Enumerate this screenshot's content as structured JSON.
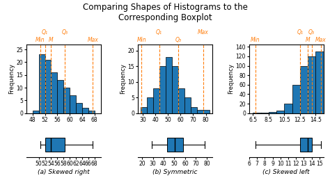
{
  "title": "Comparing Shapes of Histograms to the\nCorresponding Boxplot",
  "chart_data": [
    {
      "type": "histogram",
      "bins": [
        48,
        50,
        52,
        54,
        56,
        58,
        60,
        62,
        64,
        66,
        68
      ],
      "counts": [
        1,
        23,
        21,
        16,
        13,
        10,
        7,
        4,
        2,
        1
      ],
      "xlim": [
        46,
        70
      ],
      "ylim": [
        0,
        27
      ],
      "yticks": [
        0,
        5,
        10,
        15,
        20,
        25
      ],
      "xticks": [
        48,
        52,
        56,
        60,
        64,
        68
      ],
      "ylabel": "Frequency",
      "annotations": [
        {
          "x": 50.5,
          "text": "Min"
        },
        {
          "x": 52.0,
          "text": "Q₁"
        },
        {
          "x": 54.0,
          "text": "M"
        },
        {
          "x": 58.5,
          "text": "Q₃"
        },
        {
          "x": 67.5,
          "text": "Max"
        }
      ]
    },
    {
      "type": "boxplot",
      "min": 50.5,
      "q1": 52.0,
      "median": 54.0,
      "q3": 58.5,
      "max": 67.5,
      "xlim": [
        46,
        70
      ],
      "xticks": [
        50,
        52,
        54,
        56,
        58,
        60,
        62,
        64,
        66,
        68
      ],
      "xlabel": "(a) Skewed right"
    },
    {
      "type": "histogram",
      "bins": [
        28,
        33,
        38,
        43,
        48,
        53,
        58,
        63,
        68,
        73,
        78,
        83
      ],
      "counts": [
        2,
        5,
        8,
        15,
        18,
        15,
        8,
        5,
        2,
        1,
        1
      ],
      "xlim": [
        26,
        85
      ],
      "ylim": [
        0,
        22
      ],
      "yticks": [
        0,
        5,
        10,
        15,
        20
      ],
      "xticks": [
        30,
        40,
        50,
        60,
        70,
        80
      ],
      "ylabel": "Frequency",
      "annotations": [
        {
          "x": 29.0,
          "text": "Min"
        },
        {
          "x": 43.0,
          "text": "Q₁"
        },
        {
          "x": 58.0,
          "text": "Q₃"
        },
        {
          "x": 78.0,
          "text": "Max"
        }
      ]
    },
    {
      "type": "boxplot",
      "min": 29.0,
      "q1": 43.0,
      "median": 50.5,
      "q3": 58.0,
      "max": 78.0,
      "xlim": [
        16,
        85
      ],
      "xticks": [
        20,
        30,
        40,
        50,
        60,
        70,
        80
      ],
      "xlabel": "(b) Symmetric"
    },
    {
      "type": "histogram",
      "bins": [
        6.5,
        7.5,
        8.5,
        9.5,
        10.5,
        11.5,
        12.5,
        13.5,
        14.5,
        15.5
      ],
      "counts": [
        1,
        1,
        2,
        5,
        20,
        60,
        100,
        120,
        130
      ],
      "xlim": [
        6.0,
        15.5
      ],
      "ylim": [
        0,
        145
      ],
      "yticks": [
        0,
        20,
        40,
        60,
        80,
        100,
        120,
        140
      ],
      "xticks": [
        6.5,
        8.5,
        10.5,
        12.5,
        14.5
      ],
      "ylabel": "Frequency",
      "annotations": [
        {
          "x": 6.8,
          "text": "Min"
        },
        {
          "x": 12.5,
          "text": "Q₁"
        },
        {
          "x": 13.5,
          "text": "M"
        },
        {
          "x": 14.0,
          "text": "Q₃"
        },
        {
          "x": 15.2,
          "text": "Max"
        }
      ]
    },
    {
      "type": "boxplot",
      "min": 6.8,
      "q1": 12.5,
      "median": 13.5,
      "q3": 14.0,
      "max": 15.2,
      "xlim": [
        6.0,
        15.5
      ],
      "xticks": [
        6,
        7,
        8,
        9,
        10,
        11,
        12,
        13,
        14,
        15
      ],
      "xlabel": "(c) Skewed left"
    }
  ]
}
